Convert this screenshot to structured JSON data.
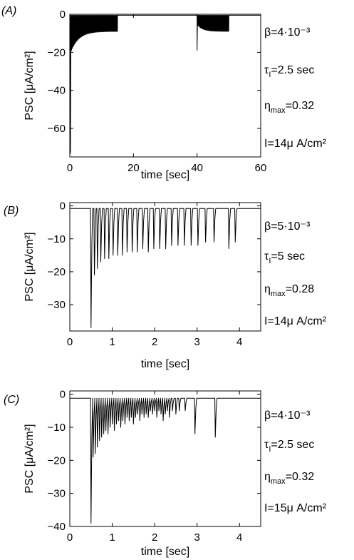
{
  "chart_data": [
    {
      "id": "A",
      "type": "line",
      "panel_label": "(A)",
      "xlabel": "time [sec]",
      "ylabel": "PSC [μA/cm²]",
      "xlim": [
        0,
        60
      ],
      "ylim": [
        -75,
        0
      ],
      "xticks": [
        0,
        20,
        40,
        60
      ],
      "yticks": [
        0,
        -20,
        -40,
        -60
      ],
      "grid": false,
      "params": {
        "beta": "β=4·10⁻³",
        "tau": "τᵢ=2.5 sec",
        "eta": "ηmax=0.32",
        "current": "I=14μ A/cm²"
      },
      "baseline": -0.5,
      "bursts": [
        {
          "start": 0.2,
          "end": 15,
          "peak": -73,
          "min_depth": -9,
          "interval": 0.12
        },
        {
          "start": 40,
          "end": 50,
          "peak": -19,
          "min_depth": -9,
          "interval": 0.12
        }
      ]
    },
    {
      "id": "B",
      "type": "line",
      "panel_label": "(B)",
      "xlabel": "time [sec]",
      "ylabel": "PSC [μA/cm²]",
      "xlim": [
        0,
        4.5
      ],
      "ylim": [
        -38,
        1
      ],
      "xticks": [
        0,
        1,
        2,
        3,
        4
      ],
      "yticks": [
        0,
        -10,
        -20,
        -30
      ],
      "grid": false,
      "params": {
        "beta": "β=5·10⁻³",
        "tau": "τᵢ=5 sec",
        "eta": "ηmax=0.28",
        "current": "I=14μ A/cm²"
      },
      "baseline": -0.8,
      "spikes": [
        {
          "t": 0.5,
          "v": -37
        },
        {
          "t": 0.58,
          "v": -21
        },
        {
          "t": 0.65,
          "v": -19
        },
        {
          "t": 0.73,
          "v": -17
        },
        {
          "t": 0.82,
          "v": -16
        },
        {
          "t": 0.92,
          "v": -16
        },
        {
          "t": 1.02,
          "v": -15
        },
        {
          "t": 1.13,
          "v": -15
        },
        {
          "t": 1.24,
          "v": -15
        },
        {
          "t": 1.35,
          "v": -14
        },
        {
          "t": 1.47,
          "v": -14
        },
        {
          "t": 1.59,
          "v": -14
        },
        {
          "t": 1.72,
          "v": -13
        },
        {
          "t": 1.85,
          "v": -14
        },
        {
          "t": 1.98,
          "v": -13
        },
        {
          "t": 2.12,
          "v": -13
        },
        {
          "t": 2.26,
          "v": -13
        },
        {
          "t": 2.4,
          "v": -12
        },
        {
          "t": 2.55,
          "v": -12
        },
        {
          "t": 2.7,
          "v": -12
        },
        {
          "t": 2.86,
          "v": -12
        },
        {
          "t": 3.02,
          "v": -12
        },
        {
          "t": 3.2,
          "v": -11
        },
        {
          "t": 3.4,
          "v": -11
        },
        {
          "t": 3.75,
          "v": -13
        },
        {
          "t": 3.9,
          "v": -11
        }
      ]
    },
    {
      "id": "C",
      "type": "line",
      "panel_label": "(C)",
      "xlabel": "time [sec]",
      "ylabel": "PSC [μA/cm²]",
      "xlim": [
        0,
        4.5
      ],
      "ylim": [
        -40,
        1
      ],
      "xticks": [
        0,
        1,
        2,
        3,
        4
      ],
      "yticks": [
        0,
        -10,
        -20,
        -30,
        -40
      ],
      "grid": false,
      "params": {
        "beta": "β=4·10⁻³",
        "tau": "τᵢ=2.5 sec",
        "eta": "ηmax=0.32",
        "current": "I=15μ A/cm²"
      },
      "baseline": -1.2,
      "spikes": [
        {
          "t": 0.5,
          "v": -39
        },
        {
          "t": 0.55,
          "v": -19
        },
        {
          "t": 0.6,
          "v": -18
        },
        {
          "t": 0.65,
          "v": -16
        },
        {
          "t": 0.7,
          "v": -14
        },
        {
          "t": 0.75,
          "v": -13
        },
        {
          "t": 0.8,
          "v": -12
        },
        {
          "t": 0.85,
          "v": -11
        },
        {
          "t": 0.9,
          "v": -12
        },
        {
          "t": 0.95,
          "v": -10
        },
        {
          "t": 1.0,
          "v": -9
        },
        {
          "t": 1.05,
          "v": -11
        },
        {
          "t": 1.1,
          "v": -9
        },
        {
          "t": 1.15,
          "v": -8
        },
        {
          "t": 1.2,
          "v": -10
        },
        {
          "t": 1.25,
          "v": -8
        },
        {
          "t": 1.3,
          "v": -9
        },
        {
          "t": 1.35,
          "v": -7
        },
        {
          "t": 1.4,
          "v": -8
        },
        {
          "t": 1.45,
          "v": -7
        },
        {
          "t": 1.5,
          "v": -9
        },
        {
          "t": 1.55,
          "v": -7
        },
        {
          "t": 1.6,
          "v": -6
        },
        {
          "t": 1.65,
          "v": -8
        },
        {
          "t": 1.7,
          "v": -6
        },
        {
          "t": 1.75,
          "v": -7
        },
        {
          "t": 1.8,
          "v": -6
        },
        {
          "t": 1.85,
          "v": -7
        },
        {
          "t": 1.9,
          "v": -5
        },
        {
          "t": 1.95,
          "v": -6
        },
        {
          "t": 2.0,
          "v": -5
        },
        {
          "t": 2.05,
          "v": -7
        },
        {
          "t": 2.1,
          "v": -5
        },
        {
          "t": 2.15,
          "v": -6
        },
        {
          "t": 2.2,
          "v": -8
        },
        {
          "t": 2.25,
          "v": -6
        },
        {
          "t": 2.3,
          "v": -5
        },
        {
          "t": 2.35,
          "v": -7
        },
        {
          "t": 2.42,
          "v": -5
        },
        {
          "t": 2.5,
          "v": -6
        },
        {
          "t": 2.58,
          "v": -5
        },
        {
          "t": 2.72,
          "v": -5
        },
        {
          "t": 2.95,
          "v": -12
        },
        {
          "t": 3.43,
          "v": -13
        }
      ]
    }
  ]
}
